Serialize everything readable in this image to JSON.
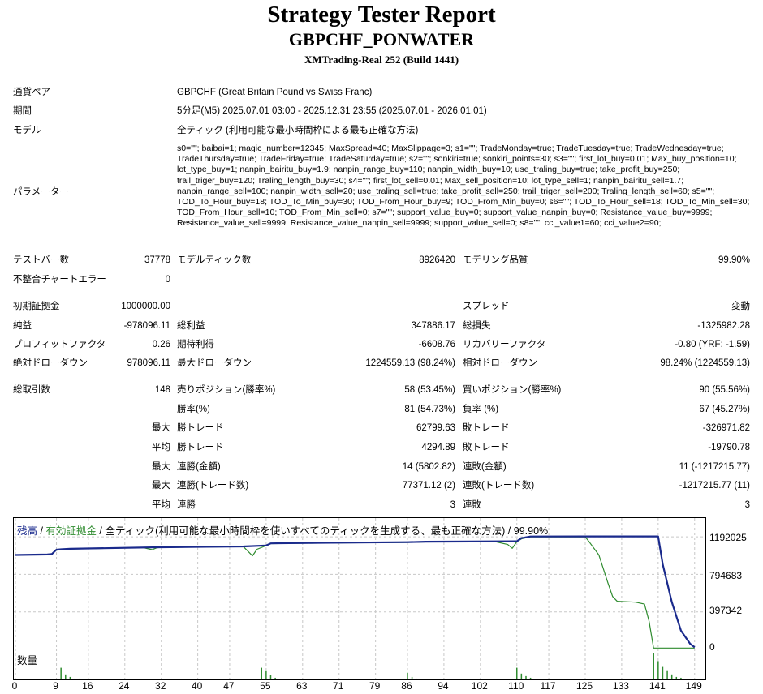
{
  "header": {
    "title": "Strategy Tester Report",
    "symbol": "GBPCHF_PONWATER",
    "server": "XMTrading-Real 252 (Build 1441)"
  },
  "info": {
    "pair_label": "通貨ペア",
    "pair_value": "GBPCHF (Great Britain Pound vs Swiss Franc)",
    "period_label": "期間",
    "period_value": "5分足(M5) 2025.07.01 03:00 - 2025.12.31 23:55 (2025.07.01 - 2026.01.01)",
    "model_label": "モデル",
    "model_value": "全ティック (利用可能な最小時間枠による最も正確な方法)",
    "params_label": "パラメーター",
    "params_value": "s0=\"\"; baibai=1; magic_number=12345; MaxSpread=40; MaxSlippage=3; s1=\"\"; TradeMonday=true; TradeTuesday=true; TradeWednesday=true; TradeThursday=true; TradeFriday=true; TradeSaturday=true; s2=\"\"; sonkiri=true; sonkiri_points=30; s3=\"\"; first_lot_buy=0.01; Max_buy_position=10; lot_type_buy=1; nanpin_bairitu_buy=1.9; nanpin_range_buy=110; nanpin_width_buy=10; use_traling_buy=true; take_profit_buy=250; trail_triger_buy=120; Traling_length_buy=30; s4=\"\"; first_lot_sell=0.01; Max_sell_position=10; lot_type_sell=1; nanpin_bairitu_sell=1.7; nanpin_range_sell=100; nanpin_width_sell=20; use_traling_sell=true; take_profit_sell=250; trail_triger_sell=200; Traling_length_sell=60; s5=\"\"; TOD_To_Hour_buy=18; TOD_To_Min_buy=30; TOD_From_Hour_buy=9; TOD_From_Min_buy=0; s6=\"\"; TOD_To_Hour_sell=18; TOD_To_Min_sell=30; TOD_From_Hour_sell=10; TOD_From_Min_sell=0; s7=\"\"; support_value_buy=0; support_value_nanpin_buy=0; Resistance_value_buy=9999; Resistance_value_sell=9999; Resistance_value_nanpin_sell=9999; support_value_sell=0; s8=\"\"; cci_value1=60; cci_value2=90;"
  },
  "stats": {
    "bars_label": "テストバー数",
    "bars_value": "37778",
    "ticks_label": "モデルティック数",
    "ticks_value": "8926420",
    "quality_label": "モデリング品質",
    "quality_value": "99.90%",
    "mismatch_label": "不整合チャートエラー",
    "mismatch_value": "0",
    "deposit_label": "初期証拠金",
    "deposit_value": "1000000.00",
    "spread_label": "スプレッド",
    "spread_value": "変動",
    "net_label": "純益",
    "net_value": "-978096.11",
    "gross_profit_label": "総利益",
    "gross_profit_value": "347886.17",
    "gross_loss_label": "総損失",
    "gross_loss_value": "-1325982.28",
    "pf_label": "プロフィットファクタ",
    "pf_value": "0.26",
    "expected_label": "期待利得",
    "expected_value": "-6608.76",
    "recovery_label": "リカバリーファクタ",
    "recovery_value": "-0.80 (YRF: -1.59)",
    "abs_dd_label": "絶対ドローダウン",
    "abs_dd_value": "978096.11",
    "max_dd_label": "最大ドローダウン",
    "max_dd_value": "1224559.13 (98.24%)",
    "rel_dd_label": "相対ドローダウン",
    "rel_dd_value": "98.24% (1224559.13)",
    "trades_label": "総取引数",
    "trades_value": "148",
    "short_label": "売りポジション(勝率%)",
    "short_value": "58 (53.45%)",
    "long_label": "買いポジション(勝率%)",
    "long_value": "90 (55.56%)",
    "winrate_label": "勝率(%)",
    "winrate_value": "81 (54.73%)",
    "lossrate_label": "負率 (%)",
    "lossrate_value": "67 (45.27%)",
    "max_label": "最大",
    "avg_label": "平均",
    "win_trade_label": "勝トレード",
    "loss_trade_label": "敗トレード",
    "max_win_value": "62799.63",
    "max_loss_value": "-326971.82",
    "avg_win_value": "4294.89",
    "avg_loss_value": "-19790.78",
    "cons_win_amt_label": "連勝(金額)",
    "cons_win_amt_value": "14 (5802.82)",
    "cons_loss_amt_label": "連敗(金額)",
    "cons_loss_amt_value": "11 (-1217215.77)",
    "cons_win_trd_label": "連勝(トレード数)",
    "cons_win_trd_value": "77371.12 (2)",
    "cons_loss_trd_label": "連敗(トレード数)",
    "cons_loss_trd_value": "-1217215.77 (11)",
    "avg_cons_win_label": "連勝",
    "avg_cons_win_value": "3",
    "avg_cons_loss_label": "連敗",
    "avg_cons_loss_value": "3"
  },
  "colors": {
    "balance": "#1a2a8c",
    "equity": "#2e8b2e",
    "grid": "#c8c8c8"
  },
  "chart_data": {
    "type": "line",
    "legend": {
      "balance": "残高",
      "sep1": " / ",
      "equity": "有効証拠金",
      "sep2": " / ",
      "model": "全ティック(利用可能な最小時間枠を使いすべてのティックを生成する、最も正確な方法)",
      "sep3": " / ",
      "quality": "99.90%"
    },
    "volume_label": "数量",
    "yticks": [
      "1192025",
      "794683",
      "397342",
      "0"
    ],
    "xticks": [
      "0",
      "9",
      "16",
      "24",
      "32",
      "40",
      "47",
      "55",
      "63",
      "71",
      "79",
      "86",
      "94",
      "102",
      "110",
      "117",
      "125",
      "133",
      "141",
      "149"
    ],
    "ylim": [
      0,
      1390000
    ],
    "xlim": [
      0,
      151
    ],
    "series": [
      {
        "name": "残高",
        "color": "#1a2a8c",
        "x": [
          0,
          7,
          8,
          9,
          10,
          12,
          30,
          40,
          50,
          55,
          56,
          60,
          72,
          86,
          90,
          110,
          111,
          113,
          125,
          141,
          142,
          144,
          146,
          148,
          149
        ],
        "y": [
          1000000,
          1005000,
          1010000,
          1055000,
          1060000,
          1065000,
          1080000,
          1085000,
          1090000,
          1100000,
          1122000,
          1125000,
          1130000,
          1135000,
          1140000,
          1145000,
          1178000,
          1195000,
          1196000,
          1196000,
          900000,
          500000,
          200000,
          60000,
          22000
        ]
      },
      {
        "name": "有効証拠金",
        "color": "#2e8b2e",
        "x": [
          0,
          7,
          8,
          9,
          10,
          12,
          28,
          30,
          31,
          32,
          40,
          50,
          51,
          52,
          53,
          55,
          56,
          72,
          86,
          90,
          105,
          108,
          109,
          110,
          111,
          113,
          125,
          126,
          128,
          130,
          131,
          132,
          136,
          138,
          139,
          140,
          141,
          149
        ],
        "y": [
          1000000,
          1002000,
          1010000,
          1050000,
          1055000,
          1062000,
          1078000,
          1055000,
          1075000,
          1080000,
          1083000,
          1088000,
          1040000,
          990000,
          1060000,
          1098000,
          1120000,
          1128000,
          1133000,
          1138000,
          1143000,
          1110000,
          1070000,
          1140000,
          1170000,
          1192000,
          1192000,
          1130000,
          1000000,
          700000,
          560000,
          510000,
          500000,
          480000,
          300000,
          15000,
          15000,
          15000
        ]
      }
    ],
    "volume": {
      "x": [
        10,
        11,
        12,
        13,
        14,
        54,
        55,
        56,
        57,
        86,
        87,
        88,
        110,
        111,
        112,
        113,
        140,
        141,
        142,
        143,
        144,
        145,
        146
      ],
      "y": [
        14,
        6,
        3,
        1,
        1,
        14,
        10,
        5,
        2,
        8,
        3,
        1,
        14,
        7,
        4,
        2,
        32,
        22,
        15,
        10,
        6,
        3,
        2
      ]
    }
  }
}
